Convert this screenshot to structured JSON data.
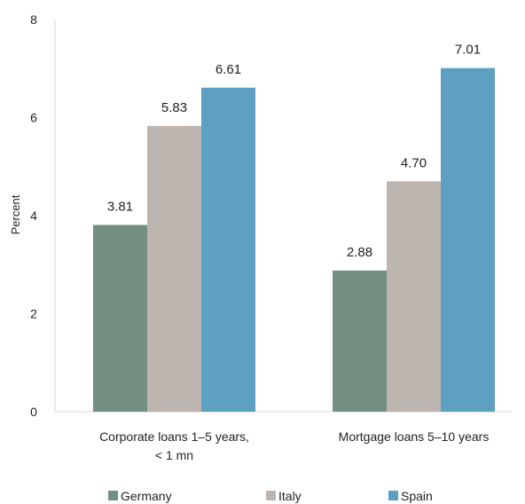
{
  "chart_data": {
    "type": "bar",
    "categories": [
      [
        "Corporate loans 1–5 years,",
        "< 1 mn"
      ],
      [
        "Mortgage loans 5–10 years"
      ]
    ],
    "series": [
      {
        "name": "Germany",
        "values": [
          3.81,
          2.88
        ],
        "labels": [
          "3.81",
          "2.88"
        ]
      },
      {
        "name": "Italy",
        "values": [
          5.83,
          4.7
        ],
        "labels": [
          "5.83",
          "4.70"
        ]
      },
      {
        "name": "Spain",
        "values": [
          6.61,
          7.01
        ],
        "labels": [
          "6.61",
          "7.01"
        ]
      }
    ],
    "ylabel": "Percent",
    "ylim": [
      0,
      8
    ],
    "yticks": [
      0,
      2,
      4,
      6,
      8
    ],
    "grid": false,
    "legend_position": "bottom",
    "colors": {
      "Germany": "#728f82",
      "Italy": "#bdb6b0",
      "Spain": "#5ea0c2"
    }
  }
}
